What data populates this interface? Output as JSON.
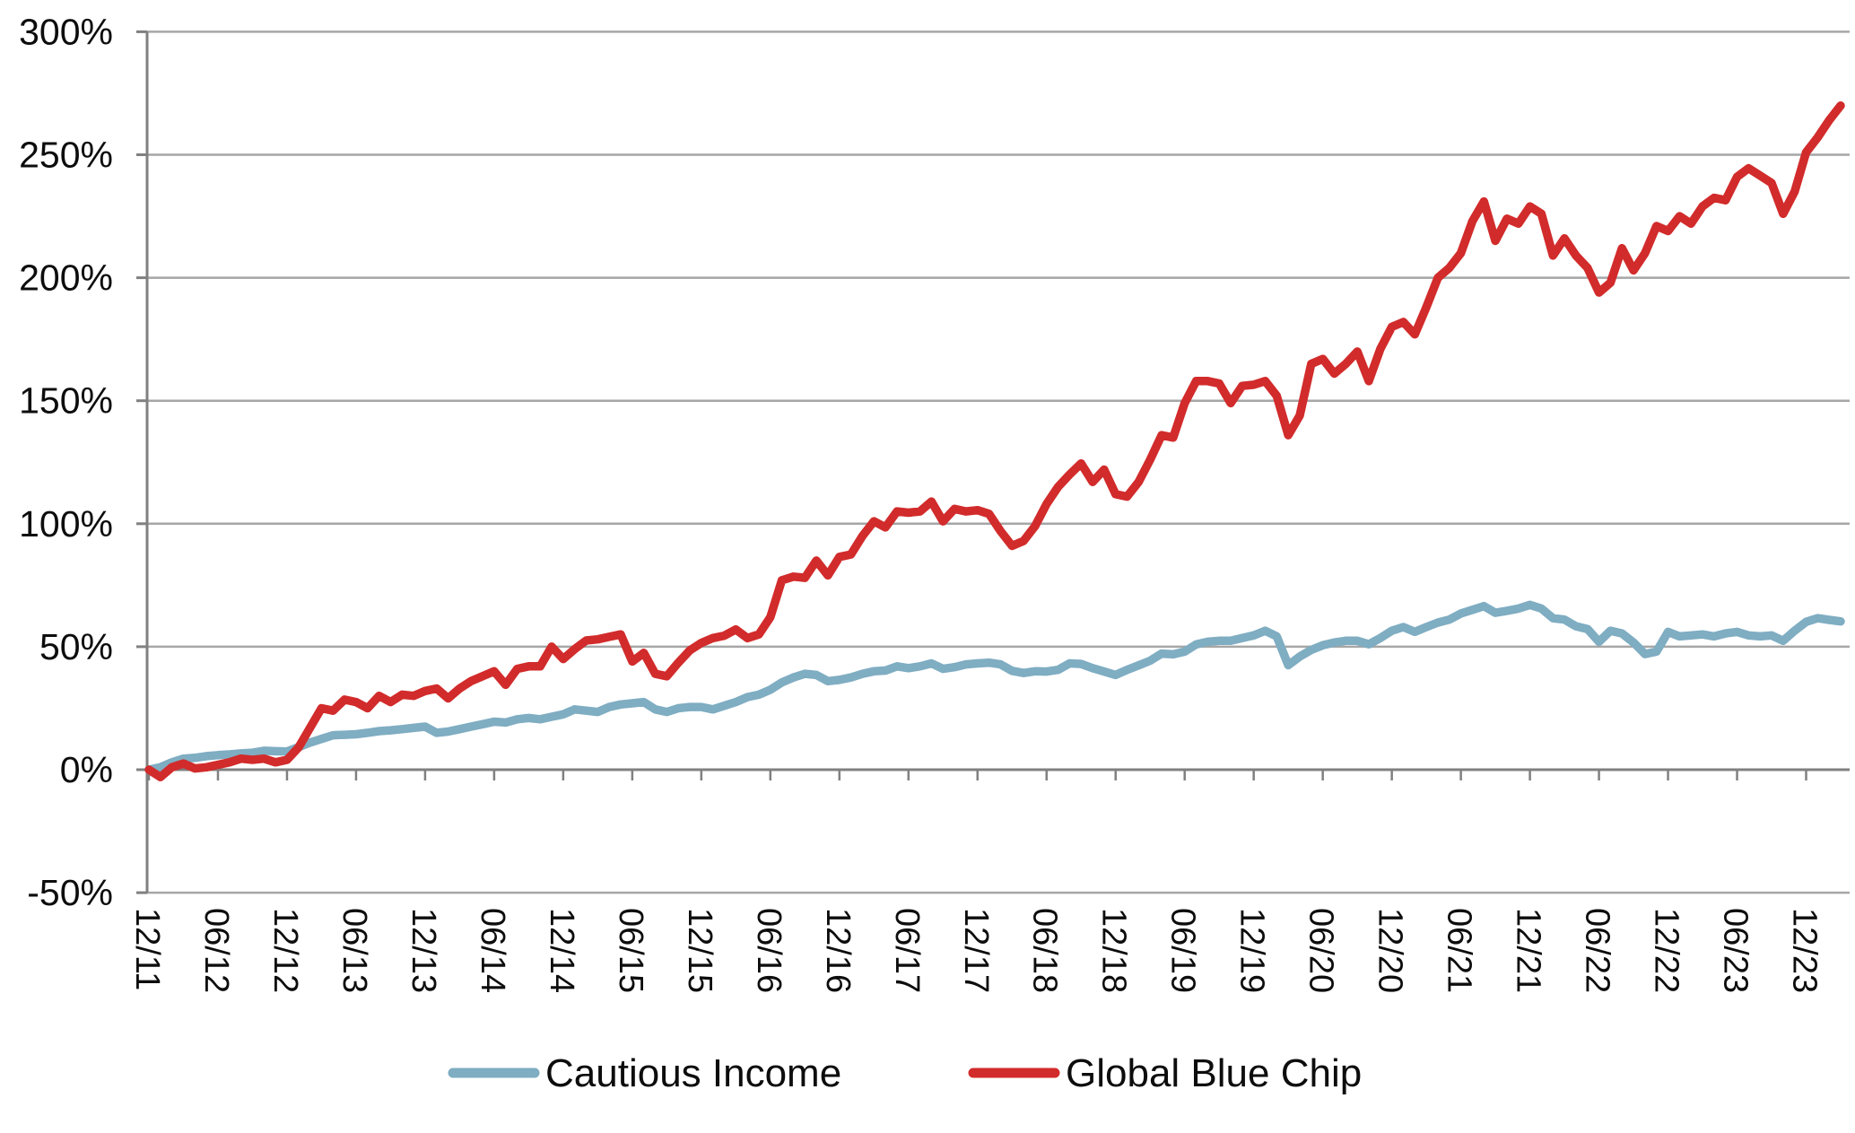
{
  "chart_data": {
    "type": "line",
    "title": "",
    "xlabel": "",
    "ylabel": "",
    "ylim": [
      -50,
      300
    ],
    "grid": "horizontal",
    "legend_position": "bottom",
    "sampling": "monthly from 12/2011 to 03/2024",
    "y_ticks": [
      {
        "label": "300%",
        "value": 300
      },
      {
        "label": "250%",
        "value": 250
      },
      {
        "label": "200%",
        "value": 200
      },
      {
        "label": "150%",
        "value": 150
      },
      {
        "label": "100%",
        "value": 100
      },
      {
        "label": "50%",
        "value": 50
      },
      {
        "label": "0%",
        "value": 0
      },
      {
        "label": "-50%",
        "value": -50
      }
    ],
    "x_tick_labels": [
      "12/11",
      "06/12",
      "12/12",
      "06/13",
      "12/13",
      "06/14",
      "12/14",
      "06/15",
      "12/15",
      "06/16",
      "12/16",
      "06/17",
      "12/17",
      "06/18",
      "12/18",
      "06/19",
      "12/19",
      "06/20",
      "12/20",
      "06/21",
      "12/21",
      "06/22",
      "12/22",
      "06/23",
      "12/23"
    ],
    "x_ticks_every_n_months": 6,
    "series": [
      {
        "name": "Cautious Income",
        "color": "#7fadc2",
        "values": [
          0,
          1,
          3,
          4.5,
          4.8,
          5.5,
          5.9,
          6.2,
          6.6,
          6.9,
          7.7,
          7.5,
          7.4,
          9.2,
          11,
          12.5,
          14,
          14.2,
          14.4,
          15,
          15.7,
          16,
          16.5,
          17,
          17.5,
          15,
          15.5,
          16.5,
          17.5,
          18.5,
          19.5,
          19.2,
          20.5,
          21,
          20.5,
          21.5,
          22.5,
          24.5,
          24,
          23.5,
          25.5,
          26.5,
          27,
          27.5,
          24.5,
          23.5,
          25,
          25.5,
          25.5,
          24.5,
          26,
          27.5,
          29.5,
          30.5,
          32.5,
          35.5,
          37.5,
          39,
          38.5,
          36,
          36.5,
          37.5,
          39,
          40,
          40.3,
          42,
          41.3,
          42,
          43.2,
          41,
          41.7,
          42.8,
          43.2,
          43.5,
          42.8,
          40.2,
          39.3,
          40,
          39.9,
          40.6,
          43.2,
          43,
          41.3,
          39.9,
          38.5,
          40.6,
          42.4,
          44.3,
          47.2,
          46.9,
          48,
          50.9,
          52,
          52.4,
          52.4,
          53.5,
          54.6,
          56.5,
          54.2,
          42.5,
          46,
          48.7,
          50.6,
          51.7,
          52.4,
          52.4,
          51,
          53.5,
          56.5,
          58,
          56,
          58,
          59.8,
          61,
          63.5,
          65,
          66.5,
          63.8,
          64.6,
          65.5,
          67,
          65.5,
          61.6,
          61,
          58.3,
          57.2,
          52,
          56.5,
          55.4,
          51.7,
          47,
          48,
          56,
          54.2,
          54.6,
          55,
          54.2,
          55.4,
          56,
          54.6,
          54.2,
          54.6,
          52.4,
          56.5,
          60.1,
          61.6,
          60.9,
          60.3
        ]
      },
      {
        "name": "Global Blue Chip",
        "color": "#d22b2b",
        "values": [
          0,
          -3,
          1,
          2.5,
          0.5,
          1,
          2,
          3,
          4.5,
          4,
          4.5,
          3,
          4,
          9,
          17,
          25,
          24,
          28.5,
          27.5,
          25,
          30,
          27.5,
          30.5,
          30,
          32,
          33,
          29,
          33,
          36,
          38,
          40,
          34.5,
          41,
          42,
          42,
          50,
          45,
          49,
          52.5,
          53,
          54,
          55,
          44,
          47.5,
          39,
          38,
          43.5,
          48.5,
          51.5,
          53.5,
          54.5,
          57,
          53.5,
          55,
          62,
          77,
          78.5,
          78,
          85,
          79,
          86.5,
          87.5,
          95,
          101,
          98.5,
          105,
          104.5,
          105,
          109,
          101,
          106,
          105,
          105.5,
          104,
          97,
          91,
          93,
          99,
          108,
          115,
          120,
          124.5,
          117,
          122,
          112,
          111,
          117,
          126,
          136,
          135,
          149,
          158,
          158,
          157,
          149,
          156,
          156.5,
          158,
          152,
          136,
          144,
          165,
          167,
          161,
          165,
          170,
          158,
          171,
          180,
          182,
          177,
          188,
          200,
          204,
          210,
          223,
          231,
          215,
          224,
          222,
          229,
          226,
          209,
          216,
          209,
          204,
          194,
          198,
          212,
          203,
          210,
          221,
          219,
          225,
          222,
          229,
          232.5,
          231.5,
          241,
          244.5,
          241.5,
          238.5,
          226,
          235,
          251,
          257,
          264,
          270
        ]
      }
    ]
  },
  "legend": {
    "cautious_income_label": "Cautious Income",
    "global_blue_chip_label": "Global Blue Chip"
  },
  "colors": {
    "gridline": "#a6a6a6",
    "axis": "#808080",
    "text": "#0d0d0d",
    "background": "#ffffff"
  }
}
